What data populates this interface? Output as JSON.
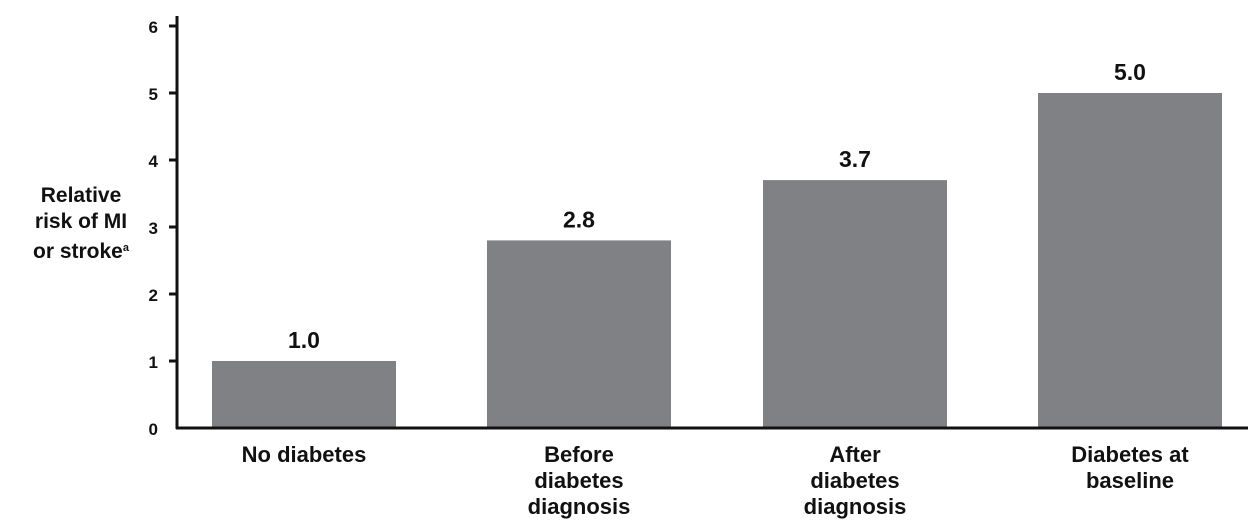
{
  "chart_data": {
    "type": "bar",
    "categories": [
      [
        "No diabetes"
      ],
      [
        "Before",
        "diabetes",
        "diagnosis"
      ],
      [
        "After",
        "diabetes",
        "diagnosis"
      ],
      [
        "Diabetes at",
        "baseline"
      ]
    ],
    "values": [
      1.0,
      2.8,
      3.7,
      5.0
    ],
    "data_labels": [
      "1.0",
      "2.8",
      "3.7",
      "5.0"
    ],
    "ylabel_lines": [
      "Relative",
      "risk of MI",
      "or stroke"
    ],
    "ylabel_superscript": "a",
    "ylim": [
      0,
      6
    ],
    "yticks": [
      0,
      1,
      2,
      3,
      4,
      5,
      6
    ],
    "grid": false,
    "bar_color": "#808184",
    "axis_color": "#111111"
  }
}
